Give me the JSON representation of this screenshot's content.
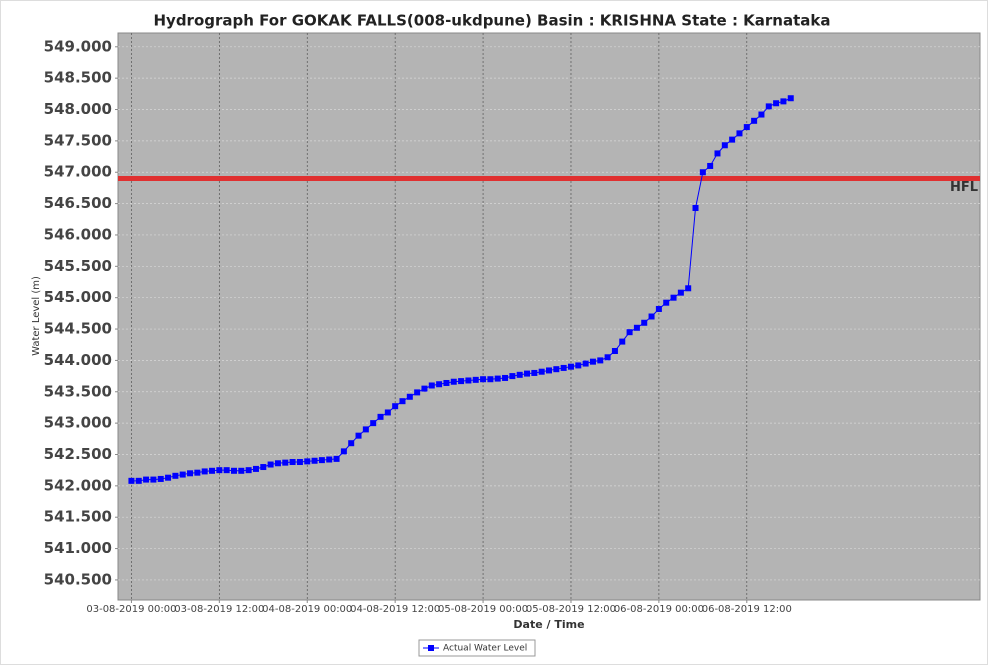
{
  "chart_data": {
    "type": "line",
    "title": "Hydrograph For GOKAK FALLS(008-ukdpune) Basin : KRISHNA State : Karnataka",
    "x_label": "Date / Time",
    "y_label": "Water Level (m)",
    "x": [
      "03-08-2019 00:00",
      "03-08-2019 01:00",
      "03-08-2019 02:00",
      "03-08-2019 03:00",
      "03-08-2019 04:00",
      "03-08-2019 05:00",
      "03-08-2019 06:00",
      "03-08-2019 07:00",
      "03-08-2019 08:00",
      "03-08-2019 09:00",
      "03-08-2019 10:00",
      "03-08-2019 11:00",
      "03-08-2019 12:00",
      "03-08-2019 13:00",
      "03-08-2019 14:00",
      "03-08-2019 15:00",
      "03-08-2019 16:00",
      "03-08-2019 17:00",
      "03-08-2019 18:00",
      "03-08-2019 19:00",
      "03-08-2019 20:00",
      "03-08-2019 21:00",
      "03-08-2019 22:00",
      "03-08-2019 23:00",
      "04-08-2019 00:00",
      "04-08-2019 01:00",
      "04-08-2019 02:00",
      "04-08-2019 03:00",
      "04-08-2019 04:00",
      "04-08-2019 05:00",
      "04-08-2019 06:00",
      "04-08-2019 07:00",
      "04-08-2019 08:00",
      "04-08-2019 09:00",
      "04-08-2019 10:00",
      "04-08-2019 11:00",
      "04-08-2019 12:00",
      "04-08-2019 13:00",
      "04-08-2019 14:00",
      "04-08-2019 15:00",
      "04-08-2019 16:00",
      "04-08-2019 17:00",
      "04-08-2019 18:00",
      "04-08-2019 19:00",
      "04-08-2019 20:00",
      "04-08-2019 21:00",
      "04-08-2019 22:00",
      "04-08-2019 23:00",
      "05-08-2019 00:00",
      "05-08-2019 01:00",
      "05-08-2019 02:00",
      "05-08-2019 03:00",
      "05-08-2019 04:00",
      "05-08-2019 05:00",
      "05-08-2019 06:00",
      "05-08-2019 07:00",
      "05-08-2019 08:00",
      "05-08-2019 09:00",
      "05-08-2019 10:00",
      "05-08-2019 11:00",
      "05-08-2019 12:00",
      "05-08-2019 13:00",
      "05-08-2019 14:00",
      "05-08-2019 15:00",
      "05-08-2019 16:00",
      "05-08-2019 17:00",
      "05-08-2019 18:00",
      "05-08-2019 19:00",
      "05-08-2019 20:00",
      "05-08-2019 21:00",
      "05-08-2019 22:00",
      "05-08-2019 23:00",
      "06-08-2019 00:00",
      "06-08-2019 01:00",
      "06-08-2019 02:00",
      "06-08-2019 03:00",
      "06-08-2019 04:00",
      "06-08-2019 05:00",
      "06-08-2019 06:00",
      "06-08-2019 07:00",
      "06-08-2019 08:00",
      "06-08-2019 09:00",
      "06-08-2019 10:00",
      "06-08-2019 11:00",
      "06-08-2019 12:00",
      "06-08-2019 13:00",
      "06-08-2019 14:00",
      "06-08-2019 15:00",
      "06-08-2019 16:00",
      "06-08-2019 17:00",
      "06-08-2019 18:00"
    ],
    "series": [
      {
        "name": "Actual Water Level",
        "color": "#0000ff",
        "values": [
          542.08,
          542.08,
          542.1,
          542.1,
          542.11,
          542.13,
          542.16,
          542.18,
          542.2,
          542.21,
          542.23,
          542.24,
          542.25,
          542.25,
          542.24,
          542.24,
          542.25,
          542.27,
          542.3,
          542.34,
          542.36,
          542.37,
          542.38,
          542.38,
          542.39,
          542.4,
          542.41,
          542.42,
          542.43,
          542.55,
          542.68,
          542.8,
          542.9,
          543.0,
          543.1,
          543.17,
          543.27,
          543.35,
          543.42,
          543.49,
          543.55,
          543.6,
          543.62,
          543.64,
          543.66,
          543.67,
          543.68,
          543.69,
          543.7,
          543.7,
          543.71,
          543.72,
          543.75,
          543.77,
          543.79,
          543.8,
          543.82,
          543.84,
          543.86,
          543.88,
          543.9,
          543.92,
          543.95,
          543.98,
          544.0,
          544.05,
          544.15,
          544.3,
          544.45,
          544.52,
          544.6,
          544.7,
          544.82,
          544.92,
          545.0,
          545.08,
          545.15,
          546.43,
          547.0,
          547.1,
          547.3,
          547.43,
          547.52,
          547.62,
          547.72,
          547.82,
          547.92,
          548.05,
          548.1,
          548.13,
          548.18
        ]
      }
    ],
    "reference_lines": [
      {
        "value": 546.9,
        "label": "HFL",
        "color": "#e03030"
      }
    ],
    "xlim": [
      "02-08-2019 22:10",
      "07-08-2019 19:50"
    ],
    "xticks": [
      "03-08-2019 00:00",
      "03-08-2019 12:00",
      "04-08-2019 00:00",
      "04-08-2019 12:00",
      "05-08-2019 00:00",
      "05-08-2019 12:00",
      "06-08-2019 00:00",
      "06-08-2019 12:00"
    ],
    "ylim": [
      540.18,
      549.22
    ],
    "yticks": [
      {
        "value": 540.5,
        "label": "540.500"
      },
      {
        "value": 541,
        "label": "541.000"
      },
      {
        "value": 541.5,
        "label": "541.500"
      },
      {
        "value": 542,
        "label": "542.000"
      },
      {
        "value": 542.5,
        "label": "542.500"
      },
      {
        "value": 543,
        "label": "543.000"
      },
      {
        "value": 543.5,
        "label": "543.500"
      },
      {
        "value": 544,
        "label": "544.000"
      },
      {
        "value": 544.5,
        "label": "544.500"
      },
      {
        "value": 545,
        "label": "545.000"
      },
      {
        "value": 545.5,
        "label": "545.500"
      },
      {
        "value": 546,
        "label": "546.000"
      },
      {
        "value": 546.5,
        "label": "546.500"
      },
      {
        "value": 547,
        "label": "547.000"
      },
      {
        "value": 547.5,
        "label": "547.500"
      },
      {
        "value": 548,
        "label": "548.000"
      },
      {
        "value": 548.5,
        "label": "548.500"
      },
      {
        "value": 549,
        "label": "549.000"
      }
    ],
    "grid": true
  }
}
